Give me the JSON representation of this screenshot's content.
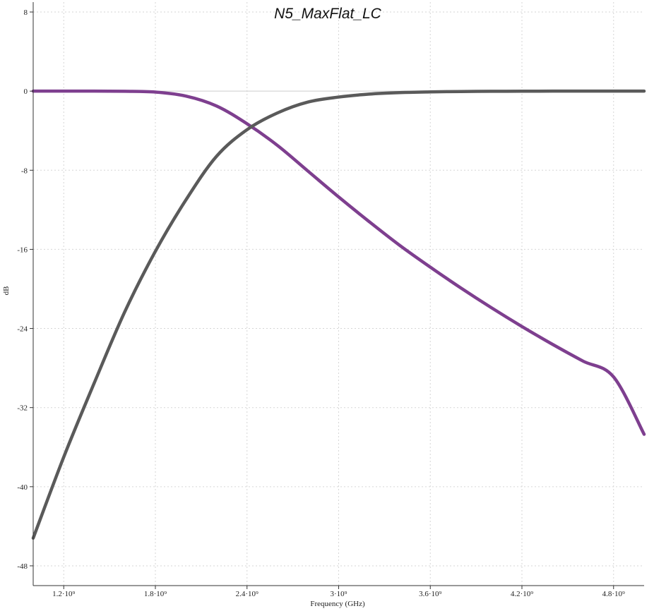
{
  "chart_data": {
    "type": "line",
    "title": "N5_MaxFlat_LC",
    "xlabel": "Frequency (GHz)",
    "ylabel": "dB",
    "xlim": [
      1000000000.0,
      5000000000.0
    ],
    "ylim": [
      -50,
      9
    ],
    "x_ticks": [
      1200000000.0,
      1800000000.0,
      2400000000.0,
      3000000000.0,
      3600000000.0,
      4200000000.0,
      4800000000.0
    ],
    "x_tick_labels": [
      "1.2·10⁹",
      "1.8·10⁹",
      "2.4·10⁹",
      "3·10⁹",
      "3.6·10⁹",
      "4.2·10⁹",
      "4.8·10⁹"
    ],
    "y_ticks": [
      8,
      0,
      -8,
      -16,
      -24,
      -32,
      -40,
      -48
    ],
    "y_tick_labels": [
      "8",
      "0",
      "-8",
      "-16",
      "-24",
      "-32",
      "-40",
      "-48"
    ],
    "grid": true,
    "x": [
      1000000000.0,
      1200000000.0,
      1400000000.0,
      1600000000.0,
      1800000000.0,
      2000000000.0,
      2200000000.0,
      2400000000.0,
      2600000000.0,
      2800000000.0,
      3000000000.0,
      3200000000.0,
      3400000000.0,
      3600000000.0,
      3800000000.0,
      4000000000.0,
      4200000000.0,
      4400000000.0,
      4600000000.0,
      4800000000.0,
      5000000000.0
    ],
    "series": [
      {
        "color": "#7e3f8f",
        "values": [
          0.0,
          0.0,
          0.0,
          -0.02,
          -0.1,
          -0.5,
          -1.5,
          -3.3,
          -5.5,
          -8.1,
          -10.7,
          -13.2,
          -15.6,
          -17.8,
          -19.9,
          -21.9,
          -23.8,
          -25.6,
          -27.3,
          -28.9,
          -34.7
        ]
      },
      {
        "color": "#5a5a5a",
        "values": [
          -45.2,
          -37.0,
          -29.5,
          -22.3,
          -16.2,
          -11.0,
          -6.6,
          -3.9,
          -2.2,
          -1.1,
          -0.6,
          -0.3,
          -0.15,
          -0.08,
          -0.04,
          -0.02,
          -0.01,
          0.0,
          0.0,
          0.0,
          0.0
        ]
      }
    ]
  }
}
